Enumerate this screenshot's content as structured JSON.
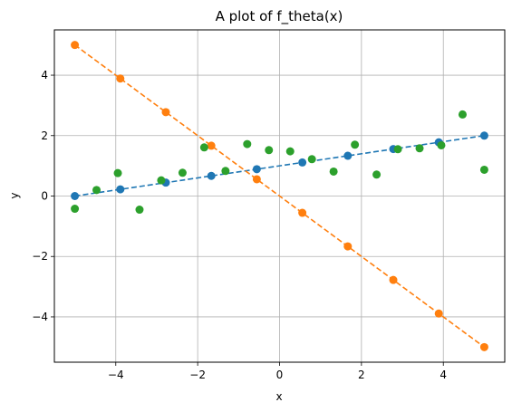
{
  "chart_data": {
    "type": "scatter",
    "title": "A plot of f_theta(x)",
    "xlabel": "x",
    "ylabel": "y",
    "xlim": [
      -5.5,
      5.5
    ],
    "ylim": [
      -5.5,
      5.5
    ],
    "xticks": [
      -4,
      -2,
      0,
      2,
      4
    ],
    "yticks": [
      -4,
      -2,
      0,
      2,
      4
    ],
    "grid": true,
    "series": [
      {
        "kind": "line-markers",
        "color": "#1f77b4",
        "x": [
          -5,
          -3.889,
          -2.778,
          -1.667,
          -0.556,
          0.556,
          1.667,
          2.778,
          3.889,
          5
        ],
        "y": [
          0,
          0.222,
          0.444,
          0.667,
          0.889,
          1.111,
          1.333,
          1.556,
          1.778,
          2
        ]
      },
      {
        "kind": "line-markers",
        "color": "#ff7f0e",
        "x": [
          -5,
          -3.889,
          -2.778,
          -1.667,
          -0.556,
          0.556,
          1.667,
          2.778,
          3.889,
          5
        ],
        "y": [
          5,
          3.889,
          2.778,
          1.667,
          0.556,
          -0.556,
          -1.667,
          -2.778,
          -3.889,
          -5
        ]
      },
      {
        "kind": "scatter",
        "color": "#2ca02c",
        "x": [
          -5,
          -4.47,
          -3.95,
          -3.42,
          -2.89,
          -2.37,
          -1.84,
          -1.32,
          -0.79,
          -0.26,
          0.26,
          0.79,
          1.32,
          1.84,
          2.37,
          2.89,
          3.42,
          3.95,
          4.47,
          5
        ],
        "y": [
          -0.42,
          0.2,
          0.76,
          -0.45,
          0.52,
          0.77,
          1.61,
          0.83,
          1.72,
          1.52,
          1.48,
          1.22,
          0.81,
          1.7,
          0.71,
          1.55,
          1.58,
          1.68,
          2.7,
          0.87
        ]
      }
    ]
  }
}
